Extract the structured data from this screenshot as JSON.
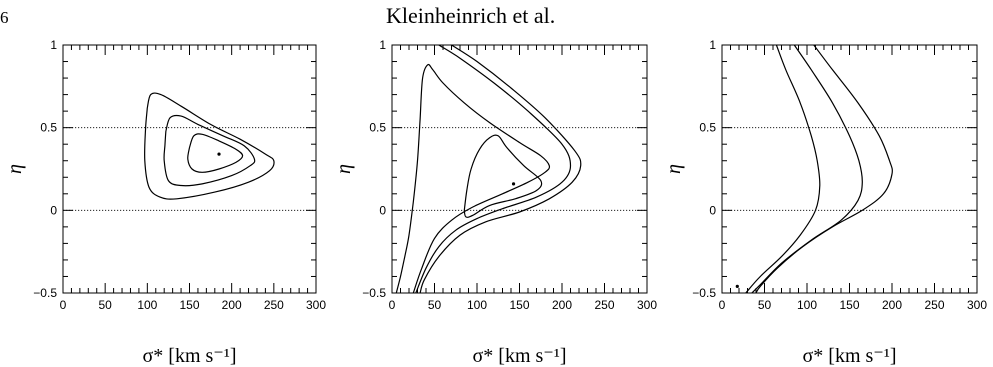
{
  "page": {
    "page_number": "6",
    "running_head": "Kleinheinrich et al."
  },
  "chart_data": [
    {
      "type": "line",
      "panel": "left",
      "xlabel": "σ* [km s⁻¹]",
      "ylabel": "η",
      "xlim": [
        0,
        300
      ],
      "ylim": [
        -0.5,
        1
      ],
      "xticks": [
        "0",
        "50",
        "100",
        "150",
        "200",
        "250",
        "300"
      ],
      "yticks": [
        "-0.5",
        "0",
        "0.5",
        "1"
      ],
      "reference_lines_y": [
        0,
        0.5
      ],
      "best_fit_point": {
        "x": 185,
        "y": 0.34
      },
      "series": [
        {
          "points": [
            [
              100,
              0.62
            ],
            [
              104,
              0.7
            ],
            [
              116,
              0.7
            ],
            [
              140,
              0.63
            ],
            [
              175,
              0.52
            ],
            [
              210,
              0.43
            ],
            [
              240,
              0.34
            ],
            [
              250,
              0.3
            ],
            [
              245,
              0.24
            ],
            [
              220,
              0.17
            ],
            [
              180,
              0.11
            ],
            [
              135,
              0.07
            ],
            [
              115,
              0.08
            ],
            [
              102,
              0.14
            ],
            [
              97,
              0.3
            ],
            [
              98,
              0.5
            ],
            [
              100,
              0.62
            ]
          ]
        },
        {
          "points": [
            [
              122,
              0.48
            ],
            [
              127,
              0.56
            ],
            [
              140,
              0.57
            ],
            [
              160,
              0.52
            ],
            [
              190,
              0.45
            ],
            [
              215,
              0.39
            ],
            [
              227,
              0.31
            ],
            [
              222,
              0.27
            ],
            [
              200,
              0.21
            ],
            [
              165,
              0.16
            ],
            [
              140,
              0.15
            ],
            [
              125,
              0.18
            ],
            [
              120,
              0.3
            ],
            [
              121,
              0.4
            ],
            [
              122,
              0.48
            ]
          ]
        },
        {
          "points": [
            [
              150,
              0.38
            ],
            [
              155,
              0.45
            ],
            [
              165,
              0.46
            ],
            [
              185,
              0.42
            ],
            [
              205,
              0.37
            ],
            [
              213,
              0.33
            ],
            [
              205,
              0.29
            ],
            [
              185,
              0.25
            ],
            [
              165,
              0.23
            ],
            [
              153,
              0.25
            ],
            [
              148,
              0.31
            ],
            [
              150,
              0.38
            ]
          ]
        }
      ]
    },
    {
      "type": "line",
      "panel": "middle",
      "xlabel": "σ* [km s⁻¹]",
      "ylabel": "η",
      "xlim": [
        0,
        300
      ],
      "ylim": [
        -0.5,
        1
      ],
      "xticks": [
        "0",
        "50",
        "100",
        "150",
        "200",
        "250",
        "300"
      ],
      "yticks": [
        "-0.5",
        "0",
        "0.5",
        "1"
      ],
      "reference_lines_y": [
        0,
        0.5
      ],
      "best_fit_point": {
        "x": 143,
        "y": 0.16
      },
      "series": [
        {
          "points": [
            [
              5,
              -0.5
            ],
            [
              10,
              -0.4
            ],
            [
              15,
              -0.28
            ],
            [
              20,
              -0.15
            ],
            [
              25,
              0.05
            ],
            [
              30,
              0.3
            ],
            [
              33,
              0.55
            ],
            [
              36,
              0.8
            ],
            [
              42,
              0.88
            ],
            [
              48,
              0.85
            ],
            [
              60,
              0.77
            ],
            [
              85,
              0.65
            ],
            [
              115,
              0.53
            ],
            [
              150,
              0.41
            ],
            [
              175,
              0.33
            ],
            [
              185,
              0.27
            ],
            [
              180,
              0.23
            ],
            [
              160,
              0.17
            ],
            [
              130,
              0.1
            ],
            [
              95,
              0.02
            ],
            [
              70,
              -0.06
            ],
            [
              50,
              -0.17
            ],
            [
              35,
              -0.35
            ],
            [
              25,
              -0.5
            ]
          ]
        },
        {
          "points": [
            [
              85,
              0.0
            ],
            [
              88,
              0.12
            ],
            [
              93,
              0.25
            ],
            [
              103,
              0.37
            ],
            [
              115,
              0.44
            ],
            [
              125,
              0.45
            ],
            [
              135,
              0.38
            ],
            [
              155,
              0.27
            ],
            [
              175,
              0.18
            ],
            [
              170,
              0.12
            ],
            [
              145,
              0.07
            ],
            [
              115,
              0.03
            ],
            [
              95,
              -0.03
            ],
            [
              87,
              -0.04
            ],
            [
              85,
              0.0
            ]
          ]
        },
        {
          "points": [
            [
              55,
              1.0
            ],
            [
              80,
              0.92
            ],
            [
              120,
              0.77
            ],
            [
              160,
              0.6
            ],
            [
              200,
              0.4
            ],
            [
              210,
              0.27
            ],
            [
              200,
              0.17
            ],
            [
              170,
              0.08
            ],
            [
              130,
              0.01
            ],
            [
              100,
              -0.05
            ],
            [
              75,
              -0.12
            ],
            [
              55,
              -0.22
            ],
            [
              40,
              -0.35
            ],
            [
              28,
              -0.5
            ]
          ]
        },
        {
          "points": [
            [
              70,
              1.0
            ],
            [
              100,
              0.9
            ],
            [
              140,
              0.74
            ],
            [
              180,
              0.56
            ],
            [
              215,
              0.36
            ],
            [
              222,
              0.27
            ],
            [
              212,
              0.17
            ],
            [
              185,
              0.07
            ],
            [
              150,
              -0.01
            ],
            [
              110,
              -0.07
            ],
            [
              80,
              -0.15
            ],
            [
              55,
              -0.28
            ],
            [
              38,
              -0.42
            ],
            [
              33,
              -0.5
            ]
          ]
        }
      ]
    },
    {
      "type": "line",
      "panel": "right",
      "xlabel": "σ* [km s⁻¹]",
      "ylabel": "η",
      "xlim": [
        0,
        300
      ],
      "ylim": [
        -0.5,
        1
      ],
      "xticks": [
        "0",
        "50",
        "100",
        "150",
        "200",
        "250",
        "300"
      ],
      "yticks": [
        "-0.5",
        "0",
        "0.5",
        "1"
      ],
      "reference_lines_y": [
        0,
        0.5
      ],
      "best_fit_point": {
        "x": 18,
        "y": -0.46
      },
      "series": [
        {
          "points": [
            [
              64,
              1.0
            ],
            [
              75,
              0.85
            ],
            [
              92,
              0.65
            ],
            [
              105,
              0.45
            ],
            [
              112,
              0.3
            ],
            [
              115,
              0.15
            ],
            [
              110,
              0.0
            ],
            [
              92,
              -0.15
            ],
            [
              70,
              -0.28
            ],
            [
              45,
              -0.4
            ],
            [
              28,
              -0.5
            ]
          ]
        },
        {
          "points": [
            [
              85,
              1.0
            ],
            [
              105,
              0.85
            ],
            [
              130,
              0.65
            ],
            [
              150,
              0.45
            ],
            [
              161,
              0.3
            ],
            [
              165,
              0.17
            ],
            [
              160,
              0.06
            ],
            [
              140,
              -0.06
            ],
            [
              105,
              -0.18
            ],
            [
              70,
              -0.32
            ],
            [
              45,
              -0.45
            ],
            [
              35,
              -0.5
            ]
          ]
        },
        {
          "points": [
            [
              108,
              1.0
            ],
            [
              130,
              0.85
            ],
            [
              160,
              0.65
            ],
            [
              185,
              0.45
            ],
            [
              197,
              0.3
            ],
            [
              200,
              0.22
            ],
            [
              190,
              0.1
            ],
            [
              165,
              0.0
            ],
            [
              130,
              -0.1
            ],
            [
              95,
              -0.22
            ],
            [
              65,
              -0.35
            ],
            [
              45,
              -0.46
            ],
            [
              40,
              -0.5
            ]
          ]
        }
      ]
    }
  ]
}
